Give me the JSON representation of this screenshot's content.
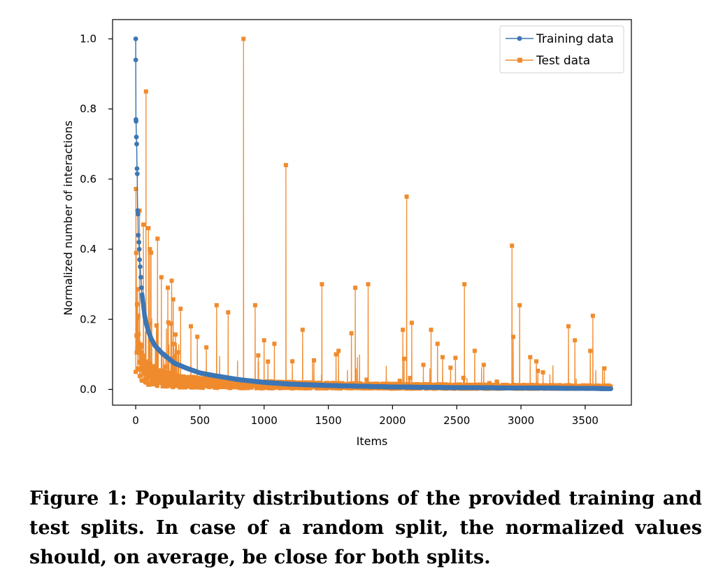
{
  "caption": "Figure 1: Popularity distributions of the provided training and test splits. In case of a random split, the normalized values should, on average, be close for both splits.",
  "chart_data": {
    "type": "line",
    "xlabel": "Items",
    "ylabel": "Normalized number of interactions",
    "xlim": [
      -180,
      3860
    ],
    "ylim": [
      -0.045,
      1.055
    ],
    "xticks": [
      0,
      500,
      1000,
      1500,
      2000,
      2500,
      3000,
      3500
    ],
    "yticks": [
      0.0,
      0.2,
      0.4,
      0.6,
      0.8,
      1.0
    ],
    "xtick_labels": [
      "0",
      "500",
      "1000",
      "1500",
      "2000",
      "2500",
      "3000",
      "3500"
    ],
    "ytick_labels": [
      "0.0",
      "0.2",
      "0.4",
      "0.6",
      "0.8",
      "1.0"
    ],
    "grid": false,
    "legend_position": "top-right",
    "series": [
      {
        "name": "Training data",
        "color": "#3d76b4",
        "marker": "circle",
        "description": "Sorted descending, power-law decay from 1.0 at item 0 toward ~0 at item 3700",
        "x": [
          0,
          1,
          2,
          3,
          5,
          8,
          10,
          12,
          15,
          18,
          20,
          25,
          28,
          30,
          35,
          40,
          45,
          50,
          60,
          70,
          80,
          100,
          120,
          150,
          200,
          250,
          300,
          400,
          500,
          600,
          700,
          800,
          1000,
          1200,
          1500,
          2000,
          2500,
          3000,
          3500,
          3700
        ],
        "values": [
          1.0,
          0.94,
          0.77,
          0.765,
          0.72,
          0.7,
          0.63,
          0.615,
          0.51,
          0.5,
          0.44,
          0.42,
          0.4,
          0.37,
          0.35,
          0.32,
          0.29,
          0.27,
          0.24,
          0.21,
          0.19,
          0.165,
          0.145,
          0.125,
          0.105,
          0.09,
          0.075,
          0.06,
          0.047,
          0.04,
          0.034,
          0.028,
          0.02,
          0.015,
          0.011,
          0.007,
          0.005,
          0.004,
          0.003,
          0.002
        ]
      },
      {
        "name": "Test data",
        "color": "#f08b2d",
        "marker": "square",
        "description": "Noisy per-item test popularity; notable peaks listed",
        "x": [
          0,
          20,
          30,
          60,
          80,
          100,
          110,
          120,
          170,
          200,
          250,
          280,
          350,
          430,
          480,
          550,
          630,
          720,
          840,
          930,
          1000,
          1080,
          1170,
          1300,
          1450,
          1560,
          1580,
          1680,
          1710,
          1810,
          2080,
          2110,
          2150,
          2240,
          2300,
          2350,
          2490,
          2560,
          2640,
          2710,
          2930,
          2940,
          2990,
          3120,
          3370,
          3420,
          3540,
          3560,
          3650
        ],
        "values": [
          0.05,
          0.21,
          0.51,
          0.47,
          0.85,
          0.46,
          0.4,
          0.39,
          0.43,
          0.32,
          0.29,
          0.31,
          0.23,
          0.18,
          0.15,
          0.12,
          0.24,
          0.22,
          1.0,
          0.24,
          0.14,
          0.13,
          0.64,
          0.17,
          0.3,
          0.1,
          0.11,
          0.16,
          0.29,
          0.3,
          0.17,
          0.55,
          0.19,
          0.07,
          0.17,
          0.13,
          0.09,
          0.3,
          0.11,
          0.07,
          0.41,
          0.15,
          0.24,
          0.08,
          0.18,
          0.14,
          0.11,
          0.21,
          0.06
        ]
      }
    ]
  }
}
